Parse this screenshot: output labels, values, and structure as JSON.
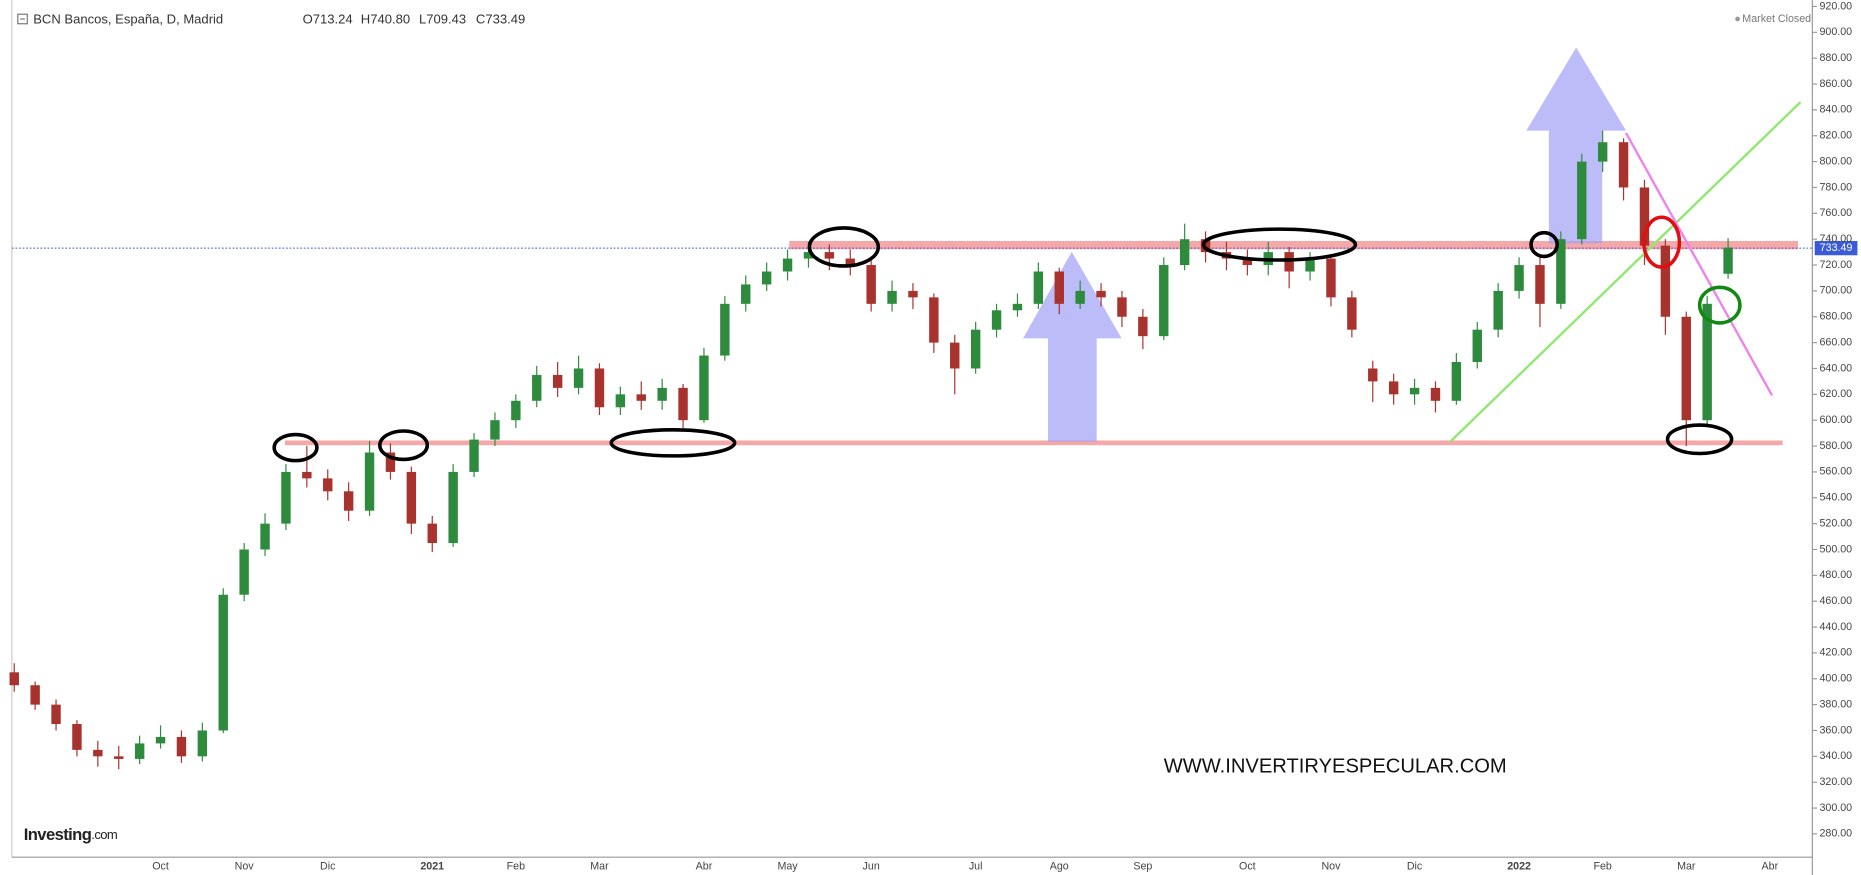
{
  "header": {
    "symbol": "BCN Bancos, España, D, Madrid",
    "open": "O713.24",
    "high": "H740.80",
    "low": "L709.43",
    "close": "C733.49"
  },
  "status": "Market Closed",
  "price_label": "733.49",
  "watermark": "WWW.INVERTIRYESPECULAR.COM",
  "logo": {
    "name": "Investing",
    "suffix": ".com"
  },
  "chart_data": {
    "type": "candlestick",
    "up_color": "#2e8b3e",
    "down_color": "#a8322d",
    "grid": false,
    "categories": [
      null,
      null,
      null,
      null,
      null,
      null,
      null,
      "Oct",
      null,
      null,
      null,
      "Nov",
      null,
      null,
      null,
      "Dic",
      null,
      null,
      null,
      null,
      "2021",
      null,
      null,
      null,
      "Feb",
      null,
      null,
      null,
      "Mar",
      null,
      null,
      null,
      null,
      "Abr",
      null,
      null,
      null,
      "May",
      null,
      null,
      null,
      "Jun",
      null,
      null,
      null,
      null,
      "Jul",
      null,
      null,
      null,
      "Ago",
      null,
      null,
      null,
      "Sep",
      null,
      null,
      null,
      null,
      "Oct",
      null,
      null,
      null,
      "Nov",
      null,
      null,
      null,
      "Dic",
      null,
      null,
      null,
      null,
      "2022",
      null,
      null,
      null,
      "Feb",
      null,
      null,
      null,
      "Mar",
      null,
      null,
      null,
      "Abr",
      null
    ],
    "open": [
      405,
      395,
      380,
      365,
      345,
      340,
      338,
      350,
      355,
      340,
      360,
      465,
      500,
      520,
      560,
      555,
      545,
      530,
      575,
      560,
      520,
      505,
      560,
      585,
      600,
      615,
      635,
      625,
      640,
      610,
      620,
      615,
      625,
      600,
      650,
      690,
      705,
      715,
      725,
      730,
      725,
      720,
      690,
      700,
      695,
      660,
      640,
      670,
      685,
      690,
      715,
      690,
      700,
      695,
      680,
      665,
      720,
      740,
      730,
      725,
      720,
      730,
      715,
      725,
      695,
      640,
      630,
      620,
      625,
      615,
      645,
      670,
      700,
      720,
      690,
      740,
      800,
      815,
      780,
      735,
      680,
      600,
      713.24,
      null,
      null,
      null
    ],
    "high": [
      412,
      398,
      384,
      368,
      352,
      348,
      356,
      364,
      360,
      366,
      470,
      505,
      528,
      566,
      580,
      562,
      552,
      584,
      582,
      564,
      526,
      566,
      590,
      606,
      620,
      642,
      645,
      650,
      644,
      626,
      630,
      632,
      628,
      656,
      696,
      712,
      722,
      732,
      738,
      736,
      732,
      724,
      708,
      706,
      698,
      666,
      676,
      690,
      698,
      722,
      718,
      708,
      706,
      700,
      686,
      726,
      752,
      746,
      738,
      732,
      738,
      734,
      730,
      728,
      700,
      646,
      636,
      632,
      630,
      652,
      676,
      706,
      726,
      728,
      746,
      806,
      824,
      818,
      786,
      740,
      684,
      696,
      740.8,
      null,
      null,
      null
    ],
    "low": [
      390,
      376,
      360,
      340,
      332,
      330,
      334,
      346,
      335,
      336,
      358,
      460,
      495,
      515,
      548,
      538,
      522,
      526,
      554,
      512,
      498,
      502,
      556,
      580,
      594,
      610,
      618,
      620,
      604,
      604,
      608,
      608,
      594,
      598,
      646,
      684,
      700,
      708,
      718,
      716,
      712,
      684,
      684,
      686,
      652,
      620,
      636,
      664,
      680,
      686,
      682,
      686,
      688,
      672,
      655,
      662,
      716,
      722,
      716,
      712,
      712,
      702,
      708,
      688,
      664,
      614,
      612,
      612,
      606,
      612,
      640,
      664,
      694,
      672,
      686,
      736,
      792,
      770,
      720,
      666,
      580,
      596,
      709.43,
      null,
      null,
      null
    ],
    "close": [
      395,
      380,
      365,
      345,
      340,
      338,
      350,
      355,
      340,
      360,
      465,
      500,
      520,
      560,
      555,
      545,
      530,
      575,
      560,
      520,
      505,
      560,
      585,
      600,
      615,
      635,
      625,
      640,
      610,
      620,
      615,
      625,
      600,
      650,
      690,
      705,
      715,
      725,
      730,
      725,
      720,
      690,
      700,
      695,
      660,
      640,
      670,
      685,
      690,
      715,
      690,
      700,
      695,
      680,
      665,
      720,
      740,
      730,
      725,
      720,
      730,
      715,
      725,
      695,
      670,
      630,
      620,
      625,
      615,
      645,
      670,
      700,
      720,
      690,
      740,
      800,
      815,
      780,
      735,
      680,
      600,
      690,
      733.49,
      null,
      null,
      null
    ],
    "ylim": [
      262,
      925
    ],
    "yticks": [
      {
        "value": 280,
        "label": "280.00"
      },
      {
        "value": 300,
        "label": "300.00"
      },
      {
        "value": 320,
        "label": "320.00"
      },
      {
        "value": 340,
        "label": "340.00"
      },
      {
        "value": 360,
        "label": "360.00"
      },
      {
        "value": 380,
        "label": "380.00"
      },
      {
        "value": 400,
        "label": "400.00"
      },
      {
        "value": 420,
        "label": "420.00"
      },
      {
        "value": 440,
        "label": "440.00"
      },
      {
        "value": 460,
        "label": "460.00"
      },
      {
        "value": 480,
        "label": "480.00"
      },
      {
        "value": 500,
        "label": "500.00"
      },
      {
        "value": 520,
        "label": "520.00"
      },
      {
        "value": 540,
        "label": "540.00"
      },
      {
        "value": 560,
        "label": "560.00"
      },
      {
        "value": 580,
        "label": "580.00"
      },
      {
        "value": 600,
        "label": "600.00"
      },
      {
        "value": 620,
        "label": "620.00"
      },
      {
        "value": 640,
        "label": "640.00"
      },
      {
        "value": 660,
        "label": "660.00"
      },
      {
        "value": 680,
        "label": "680.00"
      },
      {
        "value": 700,
        "label": "700.00"
      },
      {
        "value": 720,
        "label": "720.00"
      },
      {
        "value": 740,
        "label": "740.00"
      },
      {
        "value": 760,
        "label": "760.00"
      },
      {
        "value": 780,
        "label": "780.00"
      },
      {
        "value": 800,
        "label": "800.00"
      },
      {
        "value": 820,
        "label": "820.00"
      },
      {
        "value": 840,
        "label": "840.00"
      },
      {
        "value": 860,
        "label": "860.00"
      },
      {
        "value": 880,
        "label": "880.00"
      },
      {
        "value": 900,
        "label": "900.00"
      },
      {
        "value": 920,
        "label": "920.00"
      }
    ]
  }
}
